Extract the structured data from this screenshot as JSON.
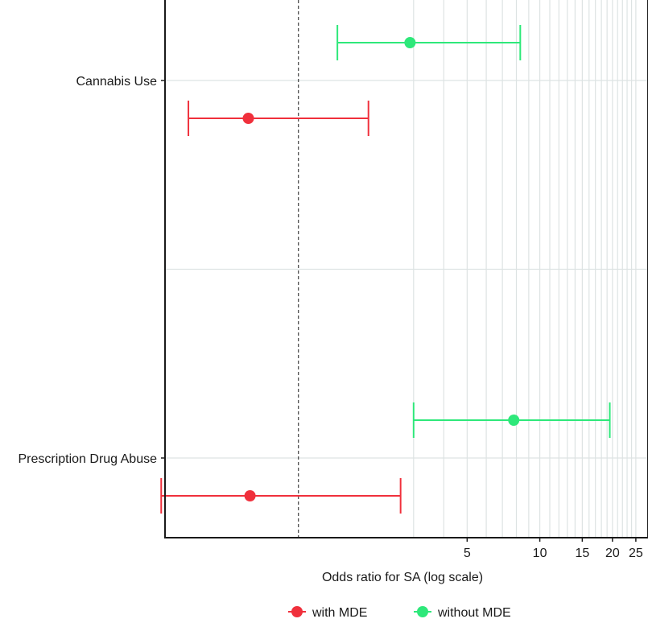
{
  "chart_data": {
    "type": "scatter",
    "subtype": "forest-plot",
    "title": "",
    "xlabel": "Odds ratio for SA (log scale)",
    "ylabel": "",
    "x_scale": "log",
    "x_range": [
      0.28,
      26
    ],
    "x_ticks": [
      5,
      10,
      15,
      20,
      25
    ],
    "x_tick_labels": [
      "5",
      "10",
      "15",
      "20",
      "25"
    ],
    "x_minor_gridlines": [
      3,
      4,
      5,
      6,
      7,
      8,
      9,
      10,
      11,
      12,
      13,
      14,
      15,
      16,
      17,
      18,
      19,
      20,
      21,
      22,
      23,
      24,
      25
    ],
    "reference_line": 1,
    "grid": true,
    "legend_position": "bottom",
    "categories": [
      "Cannabis Use",
      "Prescription Drug Abuse"
    ],
    "series": [
      {
        "name": "with MDE",
        "color": "#f0303c",
        "points": [
          {
            "category": "Cannabis Use",
            "or": 0.62,
            "lower": 0.35,
            "upper": 1.95
          },
          {
            "category": "Prescription Drug Abuse",
            "or": 0.63,
            "lower": 0.27,
            "upper": 2.65
          }
        ]
      },
      {
        "name": "without MDE",
        "color": "#2ee87a",
        "points": [
          {
            "category": "Cannabis Use",
            "or": 2.9,
            "lower": 1.45,
            "upper": 8.3
          },
          {
            "category": "Prescription Drug Abuse",
            "or": 7.8,
            "lower": 3.0,
            "upper": 19.5
          }
        ]
      }
    ]
  }
}
